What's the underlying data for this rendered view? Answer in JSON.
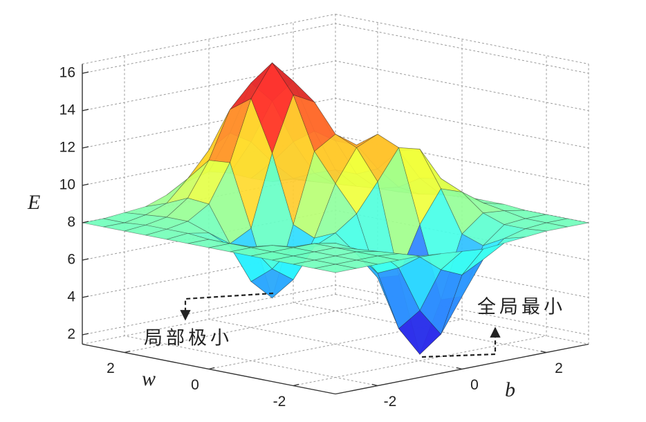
{
  "chart_data": {
    "type": "surface",
    "xlabel": "b",
    "ylabel": "w",
    "zlabel": "E",
    "x": [
      -3,
      -2.5,
      -2,
      -1.5,
      -1,
      -0.5,
      0,
      0.5,
      1,
      1.5,
      2,
      2.5,
      3
    ],
    "y": [
      -3,
      -2.5,
      -2,
      -1.5,
      -1,
      -0.5,
      0,
      0.5,
      1,
      1.5,
      2,
      2.5,
      3
    ],
    "z": [
      [
        8,
        8,
        8,
        8,
        8,
        7.9,
        7.8,
        7.7,
        7.8,
        7.9,
        8,
        8,
        8
      ],
      [
        8,
        8,
        8,
        8,
        7.9,
        7.5,
        6.6,
        6.1,
        6.7,
        7.6,
        7.9,
        8,
        8
      ],
      [
        8,
        8,
        8,
        8,
        7.8,
        6.7,
        4.2,
        2.7,
        4.5,
        7,
        7.9,
        8,
        8
      ],
      [
        8,
        8,
        8,
        8,
        7.7,
        6.2,
        3,
        1.4,
        4.1,
        7.4,
        8.3,
        8.2,
        8
      ],
      [
        8,
        8,
        8,
        8,
        7.8,
        7,
        5.5,
        5.4,
        7.9,
        9.6,
        9.2,
        8.4,
        8.1
      ],
      [
        8,
        8,
        7.9,
        7.6,
        7.4,
        7.9,
        8.7,
        10.2,
        11.8,
        11.5,
        9.7,
        8.5,
        8.1
      ],
      [
        8,
        8,
        7.6,
        6.2,
        5.4,
        7.4,
        10.1,
        11.8,
        12.3,
        11.2,
        9.5,
        8.4,
        8.1
      ],
      [
        8,
        8,
        7.4,
        5.3,
        4.2,
        7.9,
        11.6,
        12.3,
        11.5,
        10,
        8.8,
        8.2,
        8
      ],
      [
        8,
        8.1,
        7.9,
        7.1,
        7.7,
        11.5,
        14.4,
        13.8,
        11.5,
        9.5,
        8.5,
        8.1,
        8
      ],
      [
        8,
        8.1,
        8.3,
        9,
        11,
        14.2,
        15.9,
        14.7,
        11.8,
        9.5,
        8.4,
        8.1,
        8
      ],
      [
        8,
        8.1,
        8.3,
        9.1,
        10.9,
        13.4,
        14.6,
        13.4,
        11,
        9.1,
        8.3,
        8.1,
        8
      ],
      [
        8,
        8,
        8.2,
        8.6,
        9.7,
        11,
        11.7,
        11,
        9.7,
        8.6,
        8.2,
        8,
        8
      ],
      [
        8,
        8,
        8.1,
        8.2,
        8.6,
        9.1,
        9.4,
        9.1,
        8.6,
        8.2,
        8.1,
        8,
        8
      ]
    ],
    "xlim": [
      -3,
      3
    ],
    "ylim": [
      -3,
      3
    ],
    "zlim": [
      1.5,
      16.5
    ],
    "xticks": [
      -2,
      0,
      2
    ],
    "yticks": [
      -2,
      0,
      2
    ],
    "zticks": [
      2,
      4,
      6,
      8,
      10,
      12,
      14,
      16
    ],
    "colormap": "jet",
    "grid": true,
    "annotations": [
      {
        "text": "局部极小"
      },
      {
        "text": "全局最小"
      }
    ]
  }
}
